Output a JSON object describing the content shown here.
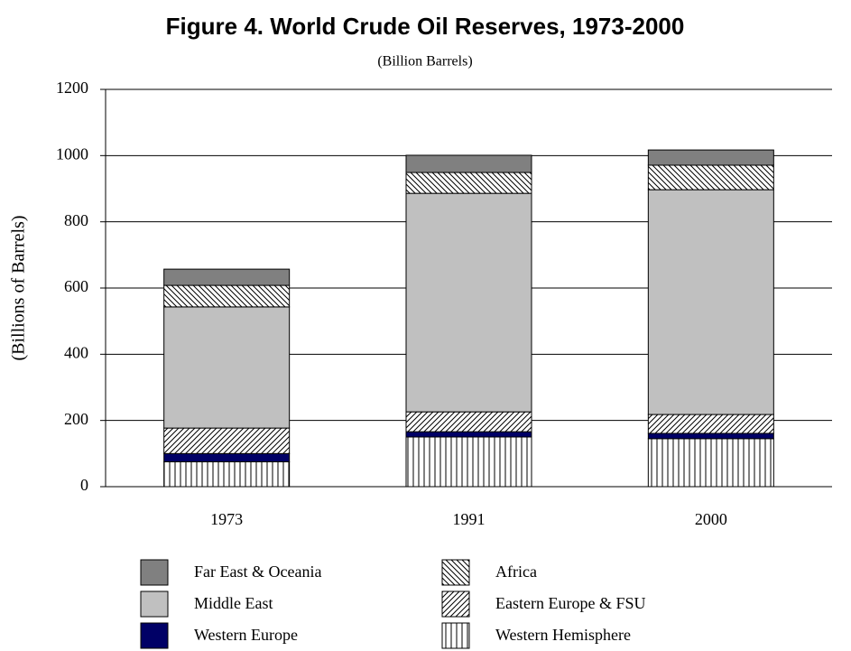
{
  "chart_data": {
    "type": "stacked_bar",
    "title": "Figure 4.  World Crude Oil Reserves, 1973-2000",
    "subtitle": "(Billion Barrels)",
    "y_label": "(Billions of Barrels)",
    "categories": [
      "1973",
      "1991",
      "2000"
    ],
    "series": [
      {
        "name": "Western Hemisphere",
        "color": "#000000",
        "pattern": "vertical",
        "values": [
          75,
          150,
          145
        ]
      },
      {
        "name": "Western Europe",
        "color": "#000066",
        "pattern": "solid",
        "values": [
          25,
          16,
          16
        ]
      },
      {
        "name": "Eastern Europe & FSU",
        "color": "#000000",
        "pattern": "slash",
        "values": [
          77,
          60,
          57
        ]
      },
      {
        "name": "Middle East",
        "color": "#c0c0c0",
        "pattern": "solid",
        "values": [
          366,
          660,
          679
        ]
      },
      {
        "name": "Africa",
        "color": "#000000",
        "pattern": "backslash",
        "values": [
          65,
          63,
          74
        ]
      },
      {
        "name": "Far East & Oceania",
        "color": "#808080",
        "pattern": "solid",
        "values": [
          49,
          52,
          46
        ]
      }
    ],
    "ylim": [
      0,
      1200
    ],
    "yticks": [
      0,
      200,
      400,
      600,
      800,
      1000,
      1200
    ],
    "grid": true
  }
}
